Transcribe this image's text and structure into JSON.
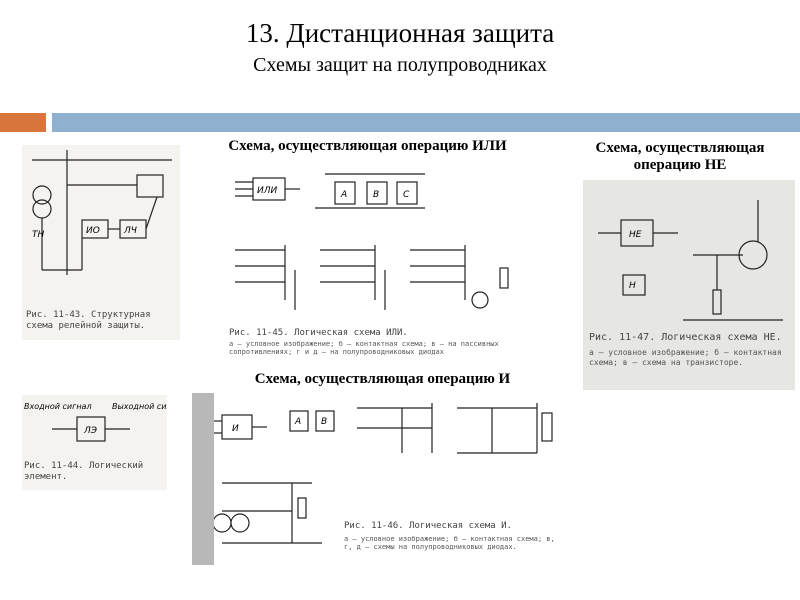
{
  "header": {
    "title": "13. Дистанционная защита",
    "subtitle": "Схемы защит на полупроводниках"
  },
  "sections": [
    {
      "heading": "Схема, осуществляющая операцию ИЛИ"
    },
    {
      "heading": "Схема, осуществляющая операцию НЕ"
    },
    {
      "heading": "Схема, осуществляющая операцию И"
    }
  ],
  "figures": [
    {
      "caption": "Рис. 11-43. Структурная схема релейной защиты.",
      "labels": [
        "ТН",
        "ИО",
        "ЛЧ"
      ]
    },
    {
      "caption": "Рис. 11-44. Логический элемент.",
      "labels": [
        "Входной сигнал",
        "ЛЭ",
        "Выходной сигнал"
      ]
    },
    {
      "caption": "Рис. 11-45. Логическая схема ИЛИ.",
      "note": "а — условное изображение; б — контактная схема; в — на пассивных сопротивлениях; г и д — на полупроводниковых диодах",
      "labels": [
        "ИЛИ",
        "A",
        "B",
        "C"
      ]
    },
    {
      "caption": "Рис. 11-47. Логическая схема НЕ.",
      "note": "а — условное изображение; б — контактная схема; в — схема на транзисторе.",
      "labels": [
        "НЕ",
        "H"
      ]
    },
    {
      "caption": "Рис. 11-46. Логическая схема И.",
      "note": "а — условное изображение; б — контактная схема; в, г, д — схемы на полупроводниковых диодах.",
      "labels": [
        "И",
        "A",
        "B"
      ]
    }
  ]
}
